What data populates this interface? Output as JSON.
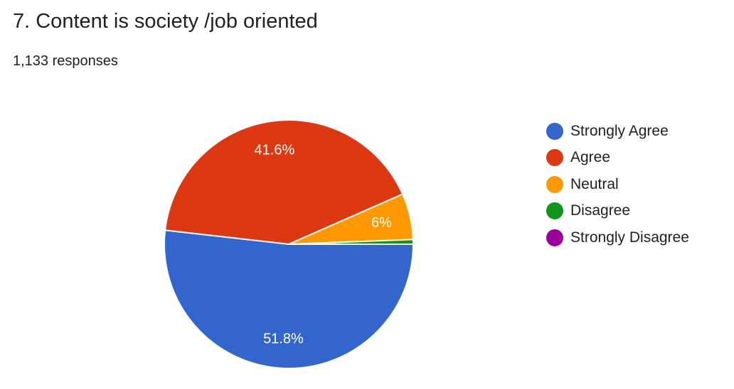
{
  "question": {
    "title": "7. Content is society /job oriented",
    "responses": "1,133 responses"
  },
  "chart_data": {
    "type": "pie",
    "title": "7. Content is society /job oriented",
    "categories": [
      "Strongly Agree",
      "Agree",
      "Neutral",
      "Disagree",
      "Strongly Disagree"
    ],
    "values": [
      51.8,
      41.6,
      6.0,
      0.6,
      0.0
    ],
    "value_labels": [
      "51.8%",
      "41.6%",
      "6%",
      "",
      ""
    ],
    "colors": [
      "#3366cc",
      "#dc3912",
      "#ff9900",
      "#109618",
      "#990099"
    ],
    "legend_position": "right"
  }
}
